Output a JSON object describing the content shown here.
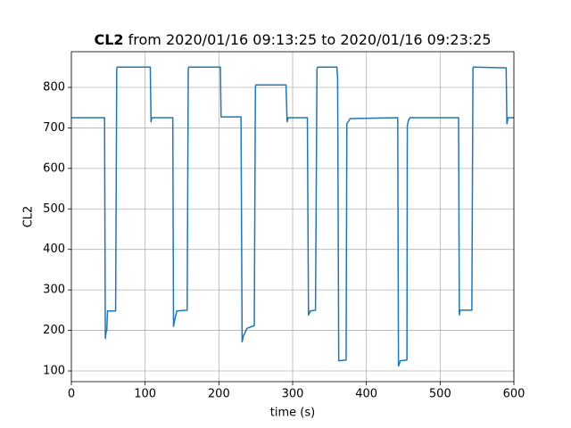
{
  "chart_data": {
    "type": "line",
    "title": {
      "bold": "CL2",
      "rest": "from 2020/01/16 09:13:25 to 2020/01/16 09:23:25"
    },
    "x_label": "time (s)",
    "y_label": "CL2",
    "x": [
      0,
      45,
      46,
      47,
      48,
      49,
      60,
      61.5,
      62,
      107,
      108,
      109,
      137.5,
      138.5,
      140,
      143,
      157,
      158.5,
      159,
      202,
      203,
      230,
      231.5,
      233,
      238,
      248,
      249.5,
      250,
      291,
      292.5,
      294,
      320,
      321.5,
      324,
      331,
      333,
      334,
      360,
      361,
      362.5,
      372.5,
      373.5,
      378,
      442.5,
      443.5,
      446,
      455,
      455.5,
      457,
      459,
      525,
      526,
      527,
      543,
      544.5,
      545,
      589.5,
      590.5,
      592,
      600
    ],
    "values": [
      725,
      725,
      180,
      195,
      200,
      248,
      248,
      845,
      850,
      850,
      715,
      725,
      725,
      210,
      225,
      248,
      250,
      845,
      850,
      850,
      727,
      727,
      172,
      185,
      205,
      212,
      800,
      806,
      806,
      715,
      725,
      725,
      238,
      248,
      250,
      845,
      850,
      850,
      822,
      125,
      127,
      710,
      723,
      725,
      112,
      125,
      127,
      705,
      718,
      725,
      725,
      238,
      250,
      250,
      845,
      850,
      848,
      710,
      725,
      725
    ],
    "color": "#1f77b4",
    "xlim": [
      0,
      600
    ],
    "xticks": [
      0,
      100,
      200,
      300,
      400,
      500,
      600
    ],
    "ylim": [
      73.6,
      888
    ],
    "yticks": [
      100,
      200,
      300,
      400,
      500,
      600,
      700,
      800
    ],
    "grid": true
  }
}
